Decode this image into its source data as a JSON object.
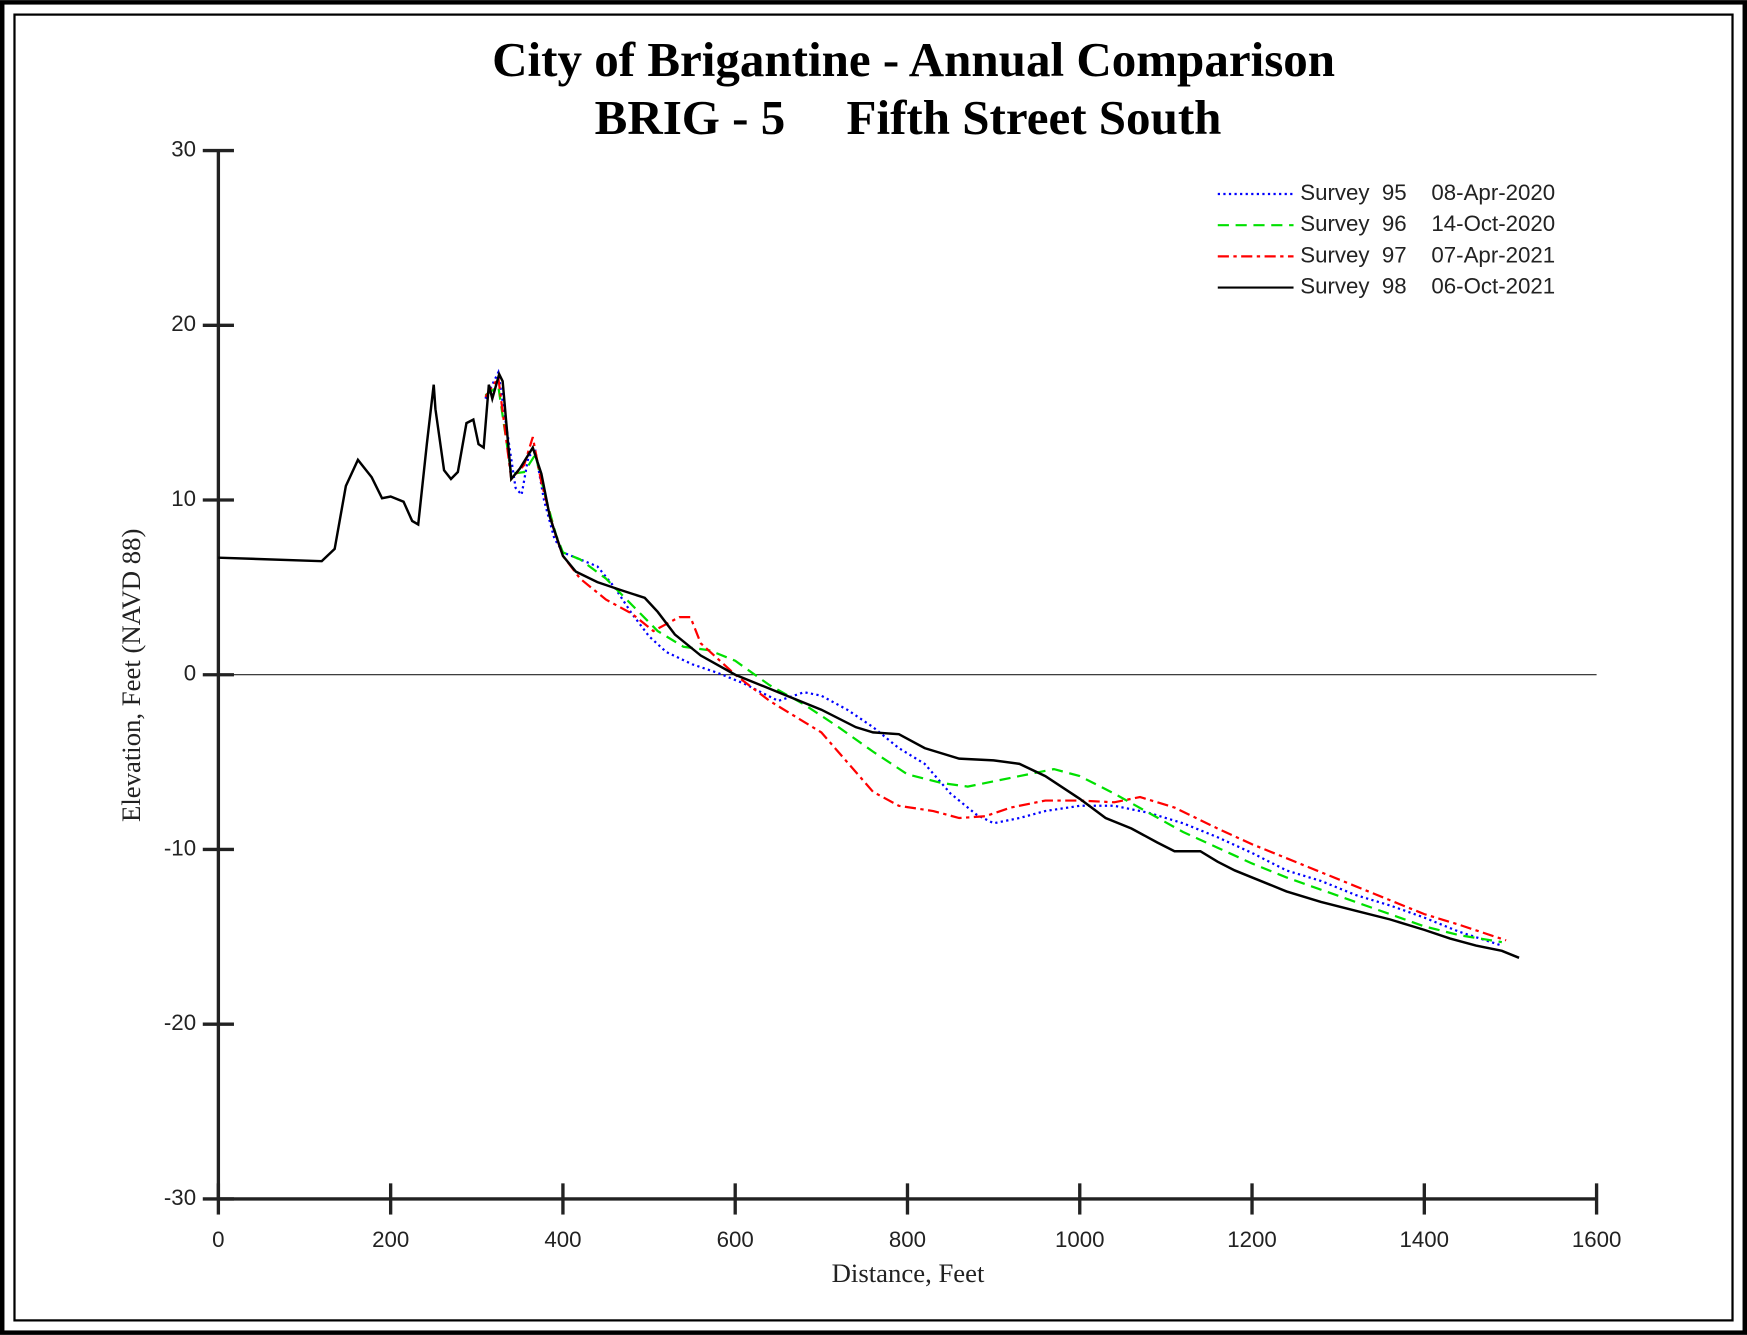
{
  "chart_data": {
    "type": "line",
    "title": "City of Brigantine - Annual Comparison",
    "subtitle": "BRIG - 5     Fifth Street South",
    "x_label": "Distance, Feet",
    "y_label": "Elevation, Feet (NAVD 88)",
    "xlim": [
      0,
      1600
    ],
    "xticks": [
      0,
      200,
      400,
      600,
      800,
      1000,
      1200,
      1400,
      1600
    ],
    "ylim": [
      -30,
      30
    ],
    "yticks": [
      -30,
      -20,
      -10,
      0,
      10,
      20,
      30
    ],
    "zero_line": true,
    "legend": "upper right",
    "series": [
      {
        "name": "Survey  95    08-Apr-2020",
        "color": "#0000ff",
        "line_style": "dotted",
        "x": [
          310,
          325,
          335,
          345,
          352,
          360,
          368,
          378,
          390,
          400,
          420,
          440,
          460,
          480,
          500,
          520,
          550,
          580,
          610,
          630,
          650,
          680,
          700,
          730,
          760,
          790,
          820,
          850,
          880,
          900,
          930,
          960,
          1000,
          1040,
          1080,
          1120,
          1160,
          1200,
          1240,
          1280,
          1320,
          1360,
          1400,
          1440,
          1490
        ],
        "values": [
          15.8,
          17.3,
          14,
          10.7,
          10.3,
          12.5,
          12.8,
          10,
          7.8,
          7,
          6.6,
          6.2,
          5,
          3.5,
          2.2,
          1.3,
          0.6,
          0.1,
          -0.5,
          -1,
          -1.5,
          -1,
          -1.2,
          -2,
          -3,
          -4.2,
          -5.1,
          -6.8,
          -8,
          -8.5,
          -8.2,
          -7.8,
          -7.5,
          -7.5,
          -7.9,
          -8.5,
          -9.3,
          -10.2,
          -11.2,
          -11.8,
          -12.6,
          -13.2,
          -13.9,
          -14.7,
          -15.5
        ]
      },
      {
        "name": "Survey  96    14-Oct-2020",
        "color": "#00e000",
        "line_style": "dashed",
        "x": [
          310,
          325,
          340,
          355,
          368,
          378,
          392,
          400,
          420,
          450,
          480,
          510,
          540,
          570,
          600,
          640,
          680,
          720,
          760,
          800,
          840,
          870,
          900,
          940,
          970,
          1000,
          1040,
          1080,
          1120,
          1160,
          1200,
          1240,
          1280,
          1320,
          1360,
          1400,
          1440,
          1490
        ],
        "values": [
          16,
          16.5,
          11.5,
          11.6,
          12.6,
          10.5,
          8,
          7,
          6.6,
          5.5,
          4,
          2.5,
          1.6,
          1.4,
          0.8,
          -0.6,
          -1.7,
          -3,
          -4.4,
          -5.7,
          -6.2,
          -6.4,
          -6.1,
          -5.7,
          -5.4,
          -5.8,
          -6.8,
          -7.9,
          -9,
          -9.9,
          -10.8,
          -11.6,
          -12.3,
          -13,
          -13.7,
          -14.4,
          -14.9,
          -15.3
        ]
      },
      {
        "name": "Survey  97    07-Apr-2021",
        "color": "#ff0000",
        "line_style": "dashdot",
        "x": [
          310,
          325,
          340,
          355,
          365,
          375,
          390,
          400,
          420,
          450,
          480,
          505,
          520,
          535,
          548,
          560,
          600,
          640,
          680,
          700,
          730,
          760,
          790,
          830,
          860,
          890,
          920,
          960,
          1000,
          1040,
          1070,
          1110,
          1160,
          1200,
          1240,
          1280,
          1320,
          1360,
          1400,
          1440,
          1495
        ],
        "values": [
          15.9,
          17,
          11.2,
          12,
          13.6,
          11,
          8.2,
          6.8,
          5.5,
          4.3,
          3.5,
          2.5,
          2.9,
          3.3,
          3.3,
          1.8,
          0,
          -1.5,
          -2.7,
          -3.3,
          -5,
          -6.7,
          -7.5,
          -7.8,
          -8.2,
          -8.1,
          -7.6,
          -7.2,
          -7.2,
          -7.3,
          -7,
          -7.6,
          -8.8,
          -9.7,
          -10.5,
          -11.3,
          -12.1,
          -12.9,
          -13.7,
          -14.3,
          -15.2
        ]
      },
      {
        "name": "Survey  98    06-Oct-2021",
        "color": "#000000",
        "line_style": "solid",
        "x": [
          0,
          120,
          135,
          148,
          162,
          178,
          190,
          200,
          215,
          225,
          232,
          242,
          250,
          252,
          262,
          270,
          278,
          288,
          296,
          302,
          308,
          314,
          318,
          326,
          330,
          340,
          350,
          365,
          375,
          385,
          400,
          415,
          440,
          470,
          495,
          510,
          530,
          560,
          600,
          650,
          700,
          740,
          760,
          790,
          820,
          860,
          900,
          930,
          960,
          1000,
          1030,
          1060,
          1090,
          1110,
          1140,
          1160,
          1180,
          1200,
          1240,
          1280,
          1320,
          1360,
          1400,
          1430,
          1460,
          1490,
          1510
        ],
        "values": [
          6.7,
          6.5,
          7.2,
          10.8,
          12.3,
          11.3,
          10.1,
          10.2,
          9.9,
          8.8,
          8.6,
          13.2,
          16.6,
          15.2,
          11.7,
          11.2,
          11.6,
          14.4,
          14.6,
          13.2,
          13,
          16.6,
          15.8,
          17.2,
          16.8,
          11.2,
          11.8,
          13,
          11.5,
          9,
          6.8,
          5.9,
          5.3,
          4.8,
          4.4,
          3.6,
          2.3,
          1.1,
          0,
          -1,
          -2,
          -3,
          -3.3,
          -3.4,
          -4.2,
          -4.8,
          -4.9,
          -5.1,
          -5.8,
          -7.1,
          -8.2,
          -8.8,
          -9.6,
          -10.1,
          -10.1,
          -10.7,
          -11.2,
          -11.6,
          -12.4,
          -13,
          -13.5,
          -14,
          -14.6,
          -15.1,
          -15.5,
          -15.8,
          -16.2
        ]
      }
    ]
  }
}
